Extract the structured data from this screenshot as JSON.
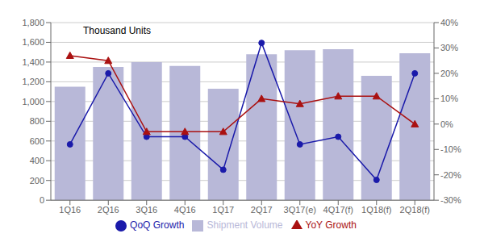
{
  "chart_data": {
    "type": "bar",
    "categories": [
      "1Q16",
      "2Q16",
      "3Q16",
      "4Q16",
      "1Q17",
      "2Q17",
      "3Q17(e)",
      "4Q17(f)",
      "1Q18(f)",
      "2Q18(f)"
    ],
    "series": [
      {
        "name": "Shipment Volume",
        "type": "bar",
        "color": "#b8b8d8",
        "values": [
          1150,
          1350,
          1400,
          1360,
          1130,
          1480,
          1520,
          1530,
          1260,
          1490
        ]
      },
      {
        "name": "QoQ Growth",
        "type": "line",
        "axis": "y2",
        "color": "#1a1aaa",
        "marker": "circle",
        "values": [
          -8,
          20,
          -5,
          -5,
          -18,
          32,
          -8,
          -5,
          -22,
          20
        ]
      },
      {
        "name": "YoY Growth",
        "type": "line",
        "axis": "y2",
        "color": "#aa1111",
        "marker": "triangle",
        "values": [
          27,
          25,
          -3,
          -3,
          -3,
          10,
          8,
          11,
          11,
          0
        ]
      }
    ],
    "ylabel": "Thousand Units",
    "ylim": [
      0,
      1800
    ],
    "yticks": [
      0,
      200,
      400,
      600,
      800,
      {
        "value": 1000,
        "label": "1,000"
      },
      {
        "value": 1200,
        "label": "1,200"
      },
      {
        "value": 1400,
        "label": "1,400"
      },
      {
        "value": 1600,
        "label": "1,600"
      },
      {
        "value": 1800,
        "label": "1,800"
      }
    ],
    "y2lim": [
      -30,
      40
    ],
    "y2ticks": [
      {
        "value": -30,
        "label": "-30%"
      },
      {
        "value": -20,
        "label": "-20%"
      },
      {
        "value": -10,
        "label": "-10%"
      },
      {
        "value": 0,
        "label": "0%"
      },
      {
        "value": 10,
        "label": "10%"
      },
      {
        "value": 20,
        "label": "20%"
      },
      {
        "value": 30,
        "label": "30%"
      },
      {
        "value": 40,
        "label": "40%"
      }
    ],
    "grid": true,
    "legend": "bottom"
  }
}
